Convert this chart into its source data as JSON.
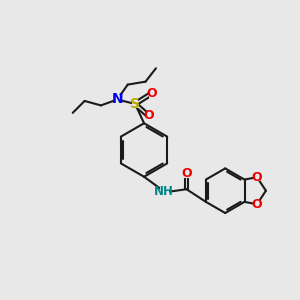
{
  "background_color": "#e8e8e8",
  "bond_color": "#1a1a1a",
  "bond_width": 1.5,
  "N_color": "#0000ee",
  "S_color": "#bbaa00",
  "O_color": "#ee0000",
  "NH_color": "#008888",
  "figsize": [
    3.0,
    3.0
  ],
  "dpi": 100,
  "xlim": [
    0,
    10
  ],
  "ylim": [
    0,
    10
  ]
}
